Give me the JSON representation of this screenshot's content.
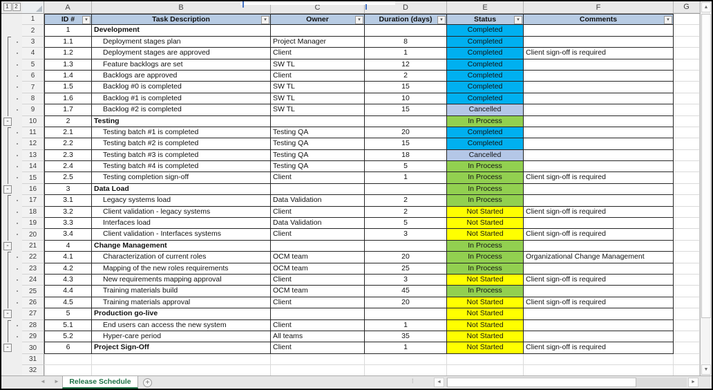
{
  "window": {
    "outline_level_buttons": [
      "1",
      "2"
    ],
    "outline_collapse_glyph": "-",
    "column_letters": [
      "A",
      "B",
      "C",
      "D",
      "E",
      "F",
      "G"
    ]
  },
  "header": {
    "id": "ID #",
    "task": "Task Description",
    "owner": "Owner",
    "duration": "Duration (days)",
    "status": "Status",
    "comments": "Comments"
  },
  "status_colors": {
    "Completed": "#00B0F0",
    "Cancelled": "#B4C7E7",
    "In Process": "#92D050",
    "Not Started": "#FFFF00"
  },
  "rows": [
    {
      "n": 2,
      "id": "1",
      "task": "Development",
      "owner": "",
      "duration": "",
      "status": "Completed",
      "comments": "",
      "section": true,
      "outline": "",
      "table": true
    },
    {
      "n": 3,
      "id": "1.1",
      "task": "Deployment stages plan",
      "owner": "Project Manager",
      "duration": "8",
      "status": "Completed",
      "comments": "",
      "section": false,
      "outline": "start",
      "table": true
    },
    {
      "n": 4,
      "id": "1.2",
      "task": "Deployment stages are approved",
      "owner": "Client",
      "duration": "1",
      "status": "Completed",
      "comments": "Client sign-off is required",
      "section": false,
      "outline": "dot",
      "table": true
    },
    {
      "n": 5,
      "id": "1.3",
      "task": "Feature backlogs are set",
      "owner": "SW TL",
      "duration": "12",
      "status": "Completed",
      "comments": "",
      "section": false,
      "outline": "dot",
      "table": true
    },
    {
      "n": 6,
      "id": "1.4",
      "task": "Backlogs are approved",
      "owner": "Client",
      "duration": "2",
      "status": "Completed",
      "comments": "",
      "section": false,
      "outline": "dot",
      "table": true
    },
    {
      "n": 7,
      "id": "1.5",
      "task": "Backlog #0 is completed",
      "owner": "SW TL",
      "duration": "15",
      "status": "Completed",
      "comments": "",
      "section": false,
      "outline": "dot",
      "table": true
    },
    {
      "n": 8,
      "id": "1.6",
      "task": "Backlog #1 is completed",
      "owner": "SW TL",
      "duration": "10",
      "status": "Completed",
      "comments": "",
      "section": false,
      "outline": "dot",
      "table": true
    },
    {
      "n": 9,
      "id": "1.7",
      "task": "Backlog #2 is completed",
      "owner": "SW TL",
      "duration": "15",
      "status": "Cancelled",
      "comments": "",
      "section": false,
      "outline": "dot",
      "table": true
    },
    {
      "n": 10,
      "id": "2",
      "task": "Testing",
      "owner": "",
      "duration": "",
      "status": "In Process",
      "comments": "",
      "section": true,
      "outline": "minus",
      "table": true
    },
    {
      "n": 11,
      "id": "2.1",
      "task": "Testing batch #1 is completed",
      "owner": "Testing QA",
      "duration": "20",
      "status": "Completed",
      "comments": "",
      "section": false,
      "outline": "start",
      "table": true
    },
    {
      "n": 12,
      "id": "2.2",
      "task": "Testing batch #2 is completed",
      "owner": "Testing QA",
      "duration": "15",
      "status": "Completed",
      "comments": "",
      "section": false,
      "outline": "dot",
      "table": true
    },
    {
      "n": 13,
      "id": "2.3",
      "task": "Testing batch #3 is completed",
      "owner": "Testing QA",
      "duration": "18",
      "status": "Cancelled",
      "comments": "",
      "section": false,
      "outline": "dot",
      "table": true
    },
    {
      "n": 14,
      "id": "2.4",
      "task": "Testing batch #4 is completed",
      "owner": "Testing QA",
      "duration": "5",
      "status": "In Process",
      "comments": "",
      "section": false,
      "outline": "dot",
      "table": true
    },
    {
      "n": 15,
      "id": "2.5",
      "task": "Testing completion sign-off",
      "owner": "Client",
      "duration": "1",
      "status": "In Process",
      "comments": "Client sign-off is required",
      "section": false,
      "outline": "dot",
      "table": true
    },
    {
      "n": 16,
      "id": "3",
      "task": "Data Load",
      "owner": "",
      "duration": "",
      "status": "In Process",
      "comments": "",
      "section": true,
      "outline": "minus",
      "table": true
    },
    {
      "n": 17,
      "id": "3.1",
      "task": "Legacy systems load",
      "owner": "Data Validation",
      "duration": "2",
      "status": "In Process",
      "comments": "",
      "section": false,
      "outline": "start",
      "table": true
    },
    {
      "n": 18,
      "id": "3.2",
      "task": "Client validation - legacy systems",
      "owner": "Client",
      "duration": "2",
      "status": "Not Started",
      "comments": "Client sign-off is required",
      "section": false,
      "outline": "dot",
      "table": true
    },
    {
      "n": 19,
      "id": "3.3",
      "task": "Interfaces load",
      "owner": "Data Validation",
      "duration": "5",
      "status": "Not Started",
      "comments": "",
      "section": false,
      "outline": "dot",
      "table": true
    },
    {
      "n": 20,
      "id": "3.4",
      "task": "Client validation - Interfaces systems",
      "owner": "Client",
      "duration": "3",
      "status": "Not Started",
      "comments": "Client sign-off is required",
      "section": false,
      "outline": "dot",
      "table": true
    },
    {
      "n": 21,
      "id": "4",
      "task": "Change Management",
      "owner": "",
      "duration": "",
      "status": "In Process",
      "comments": "",
      "section": true,
      "outline": "minus",
      "table": true
    },
    {
      "n": 22,
      "id": "4.1",
      "task": "Characterization of current roles",
      "owner": "OCM team",
      "duration": "20",
      "status": "In Process",
      "comments": "Organizational Change Management",
      "section": false,
      "outline": "start",
      "table": true
    },
    {
      "n": 23,
      "id": "4.2",
      "task": "Mapping of the new roles requirements",
      "owner": "OCM team",
      "duration": "25",
      "status": "In Process",
      "comments": "",
      "section": false,
      "outline": "dot",
      "table": true
    },
    {
      "n": 24,
      "id": "4.3",
      "task": "New requirements mapping approval",
      "owner": "Client",
      "duration": "3",
      "status": "Not Started",
      "comments": "Client sign-off is required",
      "section": false,
      "outline": "dot",
      "table": true
    },
    {
      "n": 25,
      "id": "4.4",
      "task": "Training materials build",
      "owner": "OCM team",
      "duration": "45",
      "status": "In Process",
      "comments": "",
      "section": false,
      "outline": "dot",
      "table": true
    },
    {
      "n": 26,
      "id": "4.5",
      "task": "Training materials approval",
      "owner": "Client",
      "duration": "20",
      "status": "Not Started",
      "comments": "Client sign-off is required",
      "section": false,
      "outline": "dot",
      "table": true
    },
    {
      "n": 27,
      "id": "5",
      "task": "Production go-live",
      "owner": "",
      "duration": "",
      "status": "Not Started",
      "comments": "",
      "section": true,
      "outline": "minus",
      "table": true
    },
    {
      "n": 28,
      "id": "5.1",
      "task": "End users can access the new system",
      "owner": "Client",
      "duration": "1",
      "status": "Not Started",
      "comments": "",
      "section": false,
      "outline": "start",
      "table": true
    },
    {
      "n": 29,
      "id": "5.2",
      "task": "Hyper-care period",
      "owner": "All teams",
      "duration": "35",
      "status": "Not Started",
      "comments": "",
      "section": false,
      "outline": "dot",
      "table": true
    },
    {
      "n": 30,
      "id": "6",
      "task": "Project Sign-Off",
      "owner": "Client",
      "duration": "1",
      "status": "Not Started",
      "comments": "Client sign-off is required",
      "section": true,
      "outline": "minus",
      "table": true
    },
    {
      "n": 31,
      "id": "",
      "task": "",
      "owner": "",
      "duration": "",
      "status": "",
      "comments": "",
      "section": false,
      "outline": "",
      "table": false
    },
    {
      "n": 32,
      "id": "",
      "task": "",
      "owner": "",
      "duration": "",
      "status": "",
      "comments": "",
      "section": false,
      "outline": "",
      "table": false
    }
  ],
  "tab_bar": {
    "sheet_tab": "Release Schedule",
    "add_sheet": "+",
    "nav_left": "◄",
    "nav_right": "►"
  }
}
